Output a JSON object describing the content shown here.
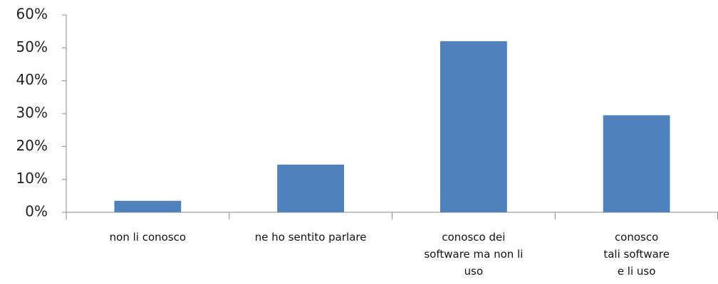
{
  "chart_data": {
    "type": "bar",
    "categories": [
      "non li conosco",
      "ne ho sentito parlare",
      "conosco dei\nsoftware ma non li\nuso",
      "conosco\ntali software\ne li uso"
    ],
    "values": [
      3.5,
      14.5,
      52,
      29.5
    ],
    "color": "#4f81bd",
    "ylim": [
      0,
      60
    ],
    "yticks": [
      {
        "value": 0,
        "label": "0%"
      },
      {
        "value": 10,
        "label": "10%"
      },
      {
        "value": 20,
        "label": "20%"
      },
      {
        "value": 30,
        "label": "30%"
      },
      {
        "value": 40,
        "label": "40%"
      },
      {
        "value": 50,
        "label": "50%"
      },
      {
        "value": 60,
        "label": "60%"
      }
    ],
    "grid": false
  }
}
